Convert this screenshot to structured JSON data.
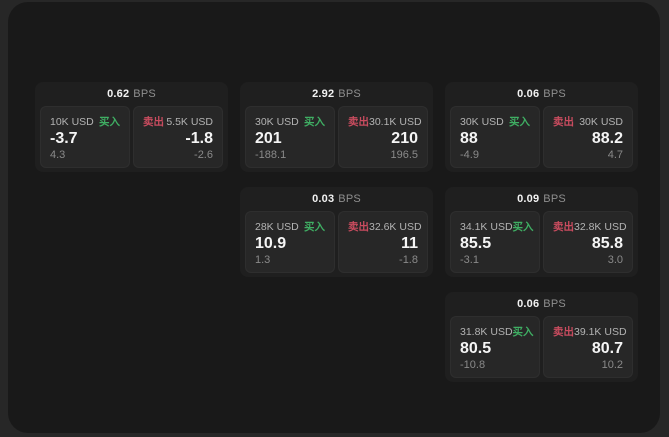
{
  "page": {
    "bg": "#272727",
    "window_bg": "#191919"
  },
  "colors": {
    "buy_green": "#3fae63",
    "sell_red": "#c94c5f",
    "card_bg": "#1f1f1f",
    "panel_bg": "#272727"
  },
  "labels": {
    "bps_unit": "BPS",
    "buy": "买入",
    "sell": "卖出"
  },
  "cards": [
    {
      "col": 1,
      "row": 1,
      "bps": "0.62",
      "buy": {
        "notional": "10K USD",
        "price": "-3.7",
        "change": "4.3"
      },
      "sell": {
        "notional": "5.5K USD",
        "price": "-1.8",
        "change": "-2.6"
      }
    },
    {
      "col": 2,
      "row": 1,
      "bps": "2.92",
      "buy": {
        "notional": "30K USD",
        "price": "201",
        "change": "-188.1"
      },
      "sell": {
        "notional": "30.1K USD",
        "price": "210",
        "change": "196.5"
      }
    },
    {
      "col": 2,
      "row": 2,
      "bps": "0.03",
      "buy": {
        "notional": "28K USD",
        "price": "10.9",
        "change": "1.3"
      },
      "sell": {
        "notional": "32.6K USD",
        "price": "11",
        "change": "-1.8"
      }
    },
    {
      "col": 3,
      "row": 1,
      "bps": "0.06",
      "buy": {
        "notional": "30K USD",
        "price": "88",
        "change": "-4.9"
      },
      "sell": {
        "notional": "30K USD",
        "price": "88.2",
        "change": "4.7"
      }
    },
    {
      "col": 3,
      "row": 2,
      "bps": "0.09",
      "buy": {
        "notional": "34.1K USD",
        "price": "85.5",
        "change": "-3.1"
      },
      "sell": {
        "notional": "32.8K USD",
        "price": "85.8",
        "change": "3.0"
      }
    },
    {
      "col": 3,
      "row": 3,
      "bps": "0.06",
      "buy": {
        "notional": "31.8K USD",
        "price": "80.5",
        "change": "-10.8"
      },
      "sell": {
        "notional": "39.1K USD",
        "price": "80.7",
        "change": "10.2"
      }
    }
  ]
}
